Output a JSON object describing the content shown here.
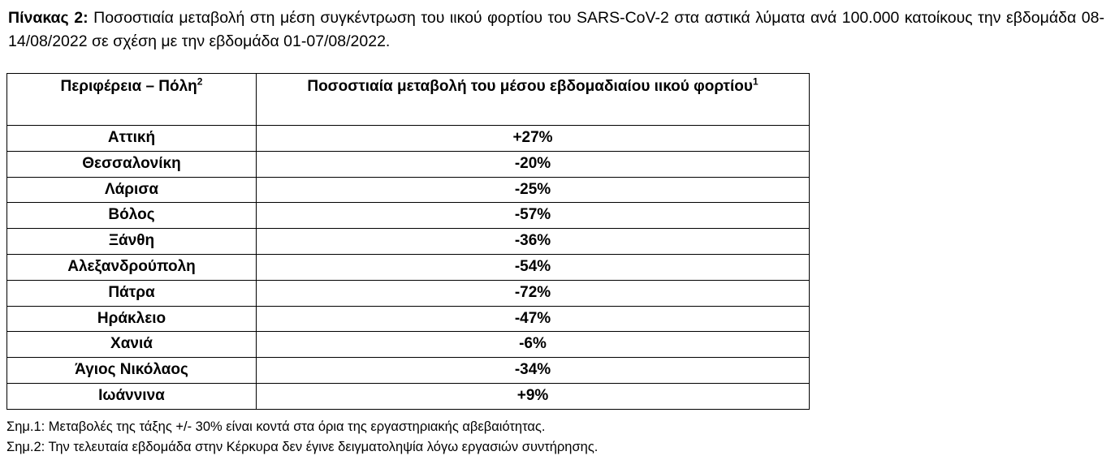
{
  "caption": {
    "label": "Πίνακας 2:",
    "text": " Ποσοστιαία μεταβολή στη μέση συγκέντρωση του ιικού φορτίου του SARS-CoV-2 στα αστικά λύματα ανά 100.000 κατοίκους την εβδομάδα 08-14/08/2022 σε σχέση με την εβδομάδα 01-07/08/2022."
  },
  "table": {
    "headers": [
      {
        "text": "Περιφέρεια – Πόλη",
        "sup": "2"
      },
      {
        "text": "Ποσοστιαία μεταβολή του μέσου εβδομαδιαίου ιικού φορτίου",
        "sup": "1"
      }
    ],
    "rows": [
      {
        "city": "Αττική",
        "change": "+27%"
      },
      {
        "city": "Θεσσαλονίκη",
        "change": "-20%"
      },
      {
        "city": "Λάρισα",
        "change": "-25%"
      },
      {
        "city": "Βόλος",
        "change": "-57%"
      },
      {
        "city": "Ξάνθη",
        "change": "-36%"
      },
      {
        "city": "Αλεξανδρούπολη",
        "change": "-54%"
      },
      {
        "city": "Πάτρα",
        "change": "-72%"
      },
      {
        "city": "Ηράκλειο",
        "change": "-47%"
      },
      {
        "city": "Χανιά",
        "change": "-6%"
      },
      {
        "city": "Άγιος Νικόλαος",
        "change": "-34%"
      },
      {
        "city": "Ιωάννινα",
        "change": "+9%"
      }
    ]
  },
  "notes": [
    "Σημ.1: Μεταβολές της τάξης +/- 30% είναι κοντά στα όρια της εργαστηριακής αβεβαιότητας.",
    "Σημ.2: Την τελευταία εβδομάδα στην Κέρκυρα δεν έγινε δειγματοληψία λόγω εργασιών συντήρησης."
  ]
}
